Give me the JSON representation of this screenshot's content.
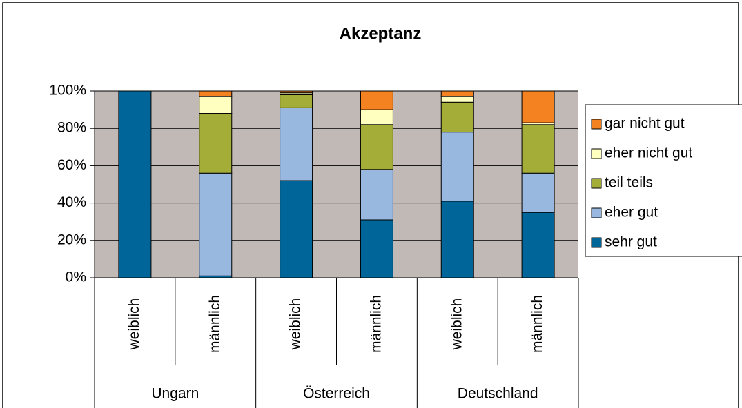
{
  "chart_data": {
    "type": "stacked-bar-100",
    "title": "Akzeptanz",
    "categories": [
      "weiblich",
      "männlich",
      "weiblich",
      "männlich",
      "weiblich",
      "männlich"
    ],
    "groups": [
      "Ungarn",
      "Österreich",
      "Deutschland"
    ],
    "series": [
      {
        "name": "sehr gut",
        "color": "#006699",
        "values": [
          100,
          1,
          52,
          31,
          41,
          35
        ]
      },
      {
        "name": "eher gut",
        "color": "#99b8e0",
        "values": [
          0,
          55,
          39,
          27,
          37,
          21
        ]
      },
      {
        "name": "teil teils",
        "color": "#a3ad38",
        "values": [
          0,
          32,
          7,
          24,
          16,
          26
        ]
      },
      {
        "name": "eher nicht gut",
        "color": "#ffffc0",
        "values": [
          0,
          9,
          1,
          8,
          3,
          1
        ]
      },
      {
        "name": "gar nicht gut",
        "color": "#f58220",
        "values": [
          0,
          3,
          1,
          10,
          3,
          17
        ]
      }
    ],
    "ylim": [
      0,
      100
    ],
    "yticks": [
      {
        "value": 0,
        "label": "0%"
      },
      {
        "value": 20,
        "label": "20%"
      },
      {
        "value": 40,
        "label": "40%"
      },
      {
        "value": 60,
        "label": "60%"
      },
      {
        "value": 80,
        "label": "80%"
      },
      {
        "value": 100,
        "label": "100%"
      }
    ],
    "grid": true,
    "plot_background": "#c0b9b6",
    "legend": "right"
  }
}
